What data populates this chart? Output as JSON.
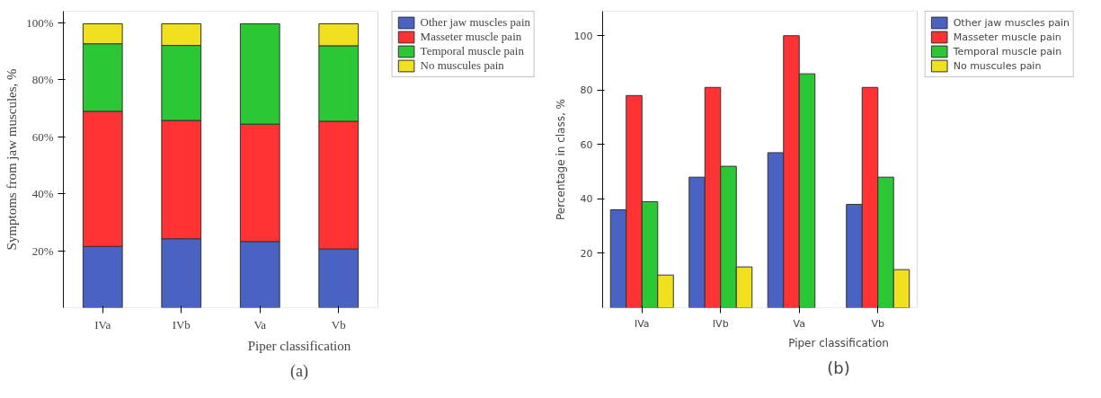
{
  "chart_data": [
    {
      "type": "bar",
      "stacked": true,
      "categories": [
        "IVa",
        "IVb",
        "Va",
        "Vb"
      ],
      "xlabel": "Piper classification",
      "ylabel": "Symptoms from jaw muscules, %",
      "ylim": [
        0,
        104
      ],
      "yticks": [
        {
          "value": 20,
          "label": "20%"
        },
        {
          "value": 40,
          "label": "40%"
        },
        {
          "value": 60,
          "label": "60%"
        },
        {
          "value": 80,
          "label": "80%"
        },
        {
          "value": 100,
          "label": "100%"
        }
      ],
      "series": [
        {
          "name": "Other jaw muscles pain",
          "color": "#4a63c2",
          "values": [
            21.5,
            24.2,
            23.2,
            20.6
          ]
        },
        {
          "name": "Masseter muscle pain",
          "color": "#ff3333",
          "values": [
            47.4,
            41.5,
            41.2,
            44.8
          ]
        },
        {
          "name": "Temporal muscle pain",
          "color": "#2cc735",
          "values": [
            23.7,
            26.3,
            35.2,
            26.5
          ]
        },
        {
          "name": "No muscules pain",
          "color": "#f0e020",
          "values": [
            7.0,
            7.6,
            null,
            7.7
          ]
        }
      ],
      "legend": "right",
      "grid": false,
      "annotations": [
        "(a)"
      ]
    },
    {
      "type": "bar",
      "stacked": false,
      "categories": [
        "IVa",
        "IVb",
        "Va",
        "Vb"
      ],
      "xlabel": "Piper classification",
      "ylabel": "Percentage in class, %",
      "ylim": [
        0,
        109
      ],
      "yticks": [
        20,
        40,
        60,
        80,
        100
      ],
      "series": [
        {
          "name": "Other jaw muscles pain",
          "color": "#4a63c2",
          "values": [
            36,
            48,
            57,
            38
          ]
        },
        {
          "name": "Masseter muscle pain",
          "color": "#ff3333",
          "values": [
            78,
            81,
            100,
            81
          ]
        },
        {
          "name": "Temporal muscle pain",
          "color": "#2cc735",
          "values": [
            39,
            52,
            86,
            48
          ]
        },
        {
          "name": "No muscules pain",
          "color": "#f0e020",
          "values": [
            12,
            15,
            null,
            14
          ]
        }
      ],
      "legend": "right",
      "grid": false,
      "annotations": [
        "(b)"
      ]
    }
  ]
}
